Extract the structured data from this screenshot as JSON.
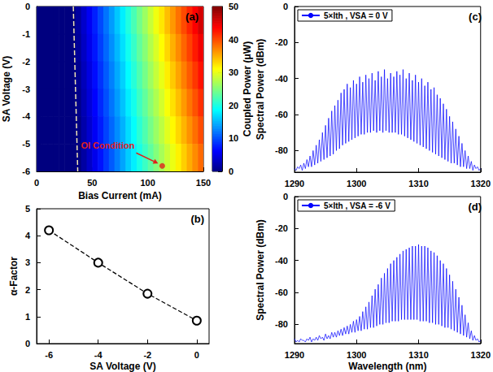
{
  "chart_data": [
    {
      "type": "heatmap",
      "label": "(a)",
      "xlabel": "Bias Current (mA)",
      "ylabel": "SA Voltage (V)",
      "xlim": [
        0,
        150
      ],
      "xticks": [
        0,
        50,
        100,
        150
      ],
      "ylim": [
        -6,
        0
      ],
      "yticks": [
        -6,
        -5,
        -4,
        -3,
        -2,
        -1,
        0
      ],
      "x": [
        2.5,
        7.5,
        12.5,
        17.5,
        22.5,
        27.5,
        32.5,
        37.5,
        42.5,
        47.5,
        52.5,
        57.5,
        62.5,
        67.5,
        72.5,
        77.5,
        82.5,
        87.5,
        92.5,
        97.5,
        102.5,
        107.5,
        112.5,
        117.5,
        122.5,
        127.5,
        132.5,
        137.5,
        142.5,
        147.5
      ],
      "y": [
        -0.5,
        -1.5,
        -2.5,
        -3.5,
        -4.5,
        -5.5
      ],
      "z": [
        [
          0,
          0,
          0,
          0,
          0,
          0,
          0,
          1.6,
          3.7,
          5.7,
          7.8,
          9.8,
          11.9,
          13.9,
          16.0,
          18.0,
          20.3,
          22.3,
          24.4,
          26.4,
          28.5,
          30.5,
          32.4,
          34.4,
          36.3,
          38.2,
          40.1,
          42.0,
          43.9,
          45.8
        ],
        [
          0,
          0,
          0,
          0,
          0,
          0,
          0,
          1.3,
          3.3,
          5.3,
          7.3,
          9.3,
          11.3,
          13.3,
          15.3,
          17.3,
          19.5,
          21.4,
          23.5,
          25.4,
          27.5,
          29.4,
          31.3,
          33.2,
          35.1,
          36.9,
          38.8,
          40.6,
          42.5,
          44.4
        ],
        [
          0,
          0,
          0,
          0,
          0,
          0,
          0,
          0.9,
          2.9,
          4.8,
          6.8,
          8.7,
          10.7,
          12.6,
          14.6,
          16.5,
          18.7,
          20.6,
          22.6,
          24.5,
          26.5,
          28.4,
          30.2,
          32.1,
          33.9,
          35.7,
          37.5,
          39.3,
          41.1,
          42.9
        ],
        [
          0,
          0,
          0,
          0,
          0,
          0,
          0,
          0.6,
          2.5,
          4.4,
          6.3,
          8.2,
          10.1,
          12.0,
          13.9,
          15.8,
          17.9,
          19.7,
          21.7,
          23.5,
          25.5,
          27.3,
          29.1,
          30.9,
          32.7,
          34.4,
          36.2,
          38.0,
          39.7,
          41.5
        ],
        [
          0,
          0,
          0,
          0,
          0,
          0,
          0,
          0.2,
          2.1,
          3.9,
          5.8,
          7.6,
          9.5,
          11.3,
          13.2,
          15.0,
          17.1,
          18.9,
          20.8,
          22.6,
          24.5,
          26.3,
          28.0,
          29.8,
          31.5,
          33.2,
          34.9,
          36.6,
          38.3,
          40.0
        ],
        [
          0,
          0,
          0,
          0,
          0,
          0,
          0,
          0,
          1.7,
          3.5,
          5.3,
          7.1,
          8.9,
          10.7,
          12.5,
          14.3,
          16.3,
          18.0,
          19.9,
          21.6,
          23.4,
          25.2,
          26.9,
          28.6,
          30.3,
          31.9,
          33.6,
          35.3,
          36.9,
          38.6
        ]
      ],
      "colorbar_label": "Coupled Power (μW)",
      "colorbar_lim": [
        0,
        50
      ],
      "colorbar_ticks": [
        0,
        10,
        20,
        30,
        40,
        50
      ],
      "threshold_line": {
        "x": [
          33,
          37
        ],
        "y": [
          0,
          -6
        ],
        "line_style": "dashed",
        "color": "#f2e6b3"
      },
      "annotation": {
        "text": "OI Condition",
        "x": 113,
        "y": -5.8,
        "color": "#e0201b",
        "marker": "circle"
      }
    },
    {
      "type": "line",
      "label": "(b)",
      "xlabel": "SA Voltage (V)",
      "ylabel": "α-Factor",
      "xlim": [
        -6.5,
        0.5
      ],
      "xticks": [
        -6,
        -4,
        -2,
        0
      ],
      "ylim": [
        0,
        5
      ],
      "yticks": [
        0,
        1,
        2,
        3,
        4,
        5
      ],
      "x": [
        -6,
        -4,
        -2,
        0
      ],
      "values": [
        4.2,
        3.0,
        1.85,
        0.85
      ],
      "color": "#000000",
      "marker": "circle",
      "line_style": "dashed"
    },
    {
      "type": "line",
      "label": "(c)",
      "xlabel": "Wavelength (nm)",
      "ylabel": "Spectral Power (dBm)",
      "xlim": [
        1290,
        1320
      ],
      "xticks": [
        1290,
        1300,
        1310,
        1320
      ],
      "ylim": [
        -92,
        0
      ],
      "yticks": [
        -80,
        -60,
        -40,
        -20,
        0
      ],
      "legend": "upper left",
      "x": [
        1290,
        1290.25,
        1290.5,
        1290.75,
        1291,
        1291.25,
        1291.5,
        1291.75,
        1292,
        1292.25,
        1292.5,
        1292.75,
        1293,
        1293.25,
        1293.5,
        1293.75,
        1294,
        1294.25,
        1294.5,
        1294.75,
        1295,
        1295.25,
        1295.5,
        1295.75,
        1296,
        1296.25,
        1296.5,
        1296.75,
        1297,
        1297.25,
        1297.5,
        1297.75,
        1298,
        1298.25,
        1298.5,
        1298.75,
        1299,
        1299.25,
        1299.5,
        1299.75,
        1300,
        1300.25,
        1300.5,
        1300.75,
        1301,
        1301.25,
        1301.5,
        1301.75,
        1302,
        1302.25,
        1302.5,
        1302.75,
        1303,
        1303.25,
        1303.5,
        1303.75,
        1304,
        1304.25,
        1304.5,
        1304.75,
        1305,
        1305.25,
        1305.5,
        1305.75,
        1306,
        1306.25,
        1306.5,
        1306.75,
        1307,
        1307.25,
        1307.5,
        1307.75,
        1308,
        1308.25,
        1308.5,
        1308.75,
        1309,
        1309.25,
        1309.5,
        1309.75,
        1310,
        1310.25,
        1310.5,
        1310.75,
        1311,
        1311.25,
        1311.5,
        1311.75,
        1312,
        1312.25,
        1312.5,
        1312.75,
        1313,
        1313.25,
        1313.5,
        1313.75,
        1314,
        1314.25,
        1314.5,
        1314.75,
        1315,
        1315.25,
        1315.5,
        1315.75,
        1316,
        1316.25,
        1316.5,
        1316.75,
        1317,
        1317.25,
        1317.5,
        1317.75,
        1318,
        1318.25,
        1318.5,
        1318.75,
        1319,
        1319.25,
        1319.5,
        1319.75,
        1320
      ],
      "series": [
        {
          "name": "5×Ith , VSA = 0 V",
          "color": "#0000ff",
          "values": [
            -90,
            -91,
            -89,
            -90,
            -88,
            -91,
            -87,
            -90,
            -85,
            -89,
            -83,
            -89,
            -80,
            -88,
            -77,
            -87,
            -74,
            -86,
            -70,
            -85,
            -66,
            -84,
            -62,
            -83,
            -58,
            -82,
            -55,
            -80,
            -52,
            -79,
            -48,
            -77,
            -46,
            -76,
            -43,
            -75,
            -45,
            -74,
            -41,
            -73,
            -43,
            -72,
            -39,
            -71,
            -42,
            -71,
            -38,
            -70,
            -40,
            -70,
            -37,
            -69,
            -41,
            -70,
            -36,
            -69,
            -39,
            -70,
            -35,
            -69,
            -40,
            -70,
            -37,
            -70,
            -39,
            -70,
            -36,
            -71,
            -38,
            -71,
            -35,
            -72,
            -40,
            -73,
            -37,
            -74,
            -41,
            -75,
            -38,
            -76,
            -42,
            -77,
            -40,
            -78,
            -44,
            -79,
            -42,
            -80,
            -46,
            -81,
            -45,
            -82,
            -49,
            -83,
            -51,
            -84,
            -54,
            -85,
            -57,
            -86,
            -61,
            -87,
            -64,
            -87,
            -68,
            -88,
            -72,
            -89,
            -76,
            -89,
            -80,
            -90,
            -83,
            -90,
            -86,
            -91,
            -88,
            -90,
            -89,
            -91,
            -90
          ]
        }
      ]
    },
    {
      "type": "line",
      "label": "(d)",
      "xlabel": "Wavelength (nm)",
      "ylabel": "Spectral Power (dBm)",
      "xlim": [
        1290,
        1320
      ],
      "xticks": [
        1290,
        1300,
        1310,
        1320
      ],
      "ylim": [
        -92,
        0
      ],
      "yticks": [
        -80,
        -60,
        -40,
        -20,
        0
      ],
      "legend": "upper left",
      "x": [
        1290,
        1290.25,
        1290.5,
        1290.75,
        1291,
        1291.25,
        1291.5,
        1291.75,
        1292,
        1292.25,
        1292.5,
        1292.75,
        1293,
        1293.25,
        1293.5,
        1293.75,
        1294,
        1294.25,
        1294.5,
        1294.75,
        1295,
        1295.25,
        1295.5,
        1295.75,
        1296,
        1296.25,
        1296.5,
        1296.75,
        1297,
        1297.25,
        1297.5,
        1297.75,
        1298,
        1298.25,
        1298.5,
        1298.75,
        1299,
        1299.25,
        1299.5,
        1299.75,
        1300,
        1300.25,
        1300.5,
        1300.75,
        1301,
        1301.25,
        1301.5,
        1301.75,
        1302,
        1302.25,
        1302.5,
        1302.75,
        1303,
        1303.25,
        1303.5,
        1303.75,
        1304,
        1304.25,
        1304.5,
        1304.75,
        1305,
        1305.25,
        1305.5,
        1305.75,
        1306,
        1306.25,
        1306.5,
        1306.75,
        1307,
        1307.25,
        1307.5,
        1307.75,
        1308,
        1308.25,
        1308.5,
        1308.75,
        1309,
        1309.25,
        1309.5,
        1309.75,
        1310,
        1310.25,
        1310.5,
        1310.75,
        1311,
        1311.25,
        1311.5,
        1311.75,
        1312,
        1312.25,
        1312.5,
        1312.75,
        1313,
        1313.25,
        1313.5,
        1313.75,
        1314,
        1314.25,
        1314.5,
        1314.75,
        1315,
        1315.25,
        1315.5,
        1315.75,
        1316,
        1316.25,
        1316.5,
        1316.75,
        1317,
        1317.25,
        1317.5,
        1317.75,
        1318,
        1318.25,
        1318.5,
        1318.75,
        1319,
        1319.25,
        1319.5,
        1319.75,
        1320
      ],
      "series": [
        {
          "name": "5×Ith , VSA = -6 V",
          "color": "#0000ff",
          "values": [
            -89,
            -91,
            -90,
            -91,
            -89,
            -90,
            -90,
            -91,
            -89,
            -90,
            -88,
            -91,
            -89,
            -90,
            -88,
            -90,
            -87,
            -89,
            -88,
            -90,
            -86,
            -89,
            -87,
            -89,
            -85,
            -88,
            -85,
            -88,
            -84,
            -87,
            -83,
            -87,
            -82,
            -86,
            -81,
            -86,
            -80,
            -85,
            -78,
            -85,
            -77,
            -84,
            -75,
            -84,
            -72,
            -83,
            -69,
            -83,
            -66,
            -82,
            -62,
            -82,
            -58,
            -81,
            -55,
            -80,
            -51,
            -80,
            -48,
            -79,
            -45,
            -79,
            -42,
            -78,
            -40,
            -78,
            -38,
            -78,
            -36,
            -77,
            -34,
            -77,
            -33,
            -77,
            -32,
            -77,
            -31,
            -77,
            -31,
            -77,
            -30,
            -78,
            -31,
            -78,
            -31,
            -78,
            -32,
            -79,
            -34,
            -79,
            -35,
            -80,
            -37,
            -80,
            -40,
            -81,
            -42,
            -82,
            -45,
            -82,
            -49,
            -83,
            -53,
            -84,
            -58,
            -85,
            -63,
            -86,
            -68,
            -87,
            -74,
            -88,
            -79,
            -89,
            -84,
            -90,
            -87,
            -90,
            -89,
            -91,
            -90
          ]
        }
      ]
    }
  ]
}
